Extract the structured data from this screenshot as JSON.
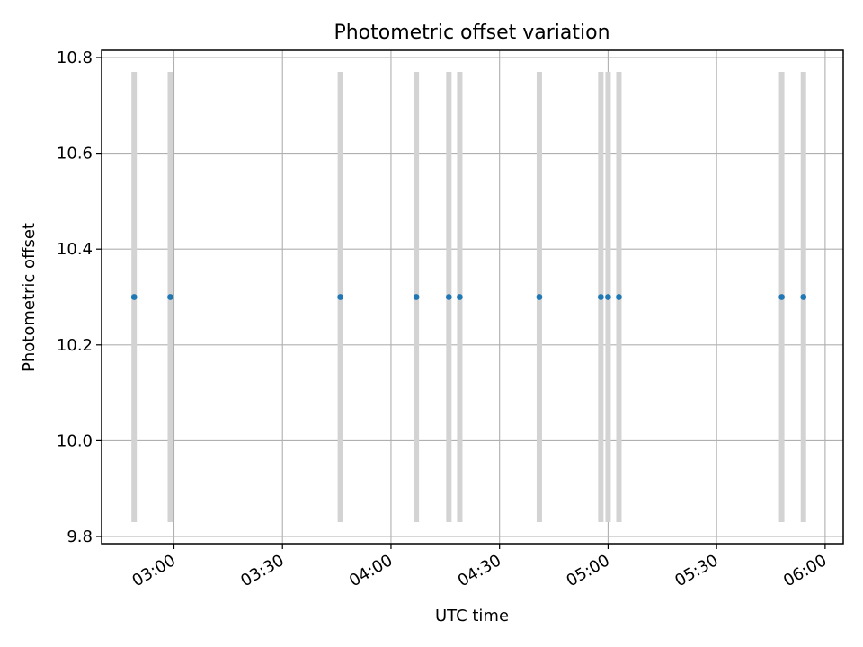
{
  "chart_data": {
    "type": "scatter",
    "title": "Photometric offset variation",
    "xlabel": "UTC time",
    "ylabel": "Photometric offset",
    "x_axis": {
      "range": [
        "02:40",
        "06:05"
      ],
      "ticks": [
        "03:00",
        "03:30",
        "04:00",
        "04:30",
        "05:00",
        "05:30",
        "06:00"
      ]
    },
    "y_axis": {
      "range": [
        9.785,
        10.815
      ],
      "ticks": [
        "9.8",
        "10.0",
        "10.2",
        "10.4",
        "10.6",
        "10.8"
      ]
    },
    "grid": true,
    "series": [
      {
        "color": "#1f77b4",
        "error_color": "#d3d3d3",
        "y_error_range": [
          9.83,
          10.77
        ],
        "points": [
          {
            "x": "02:49",
            "y": 10.3
          },
          {
            "x": "02:59",
            "y": 10.3
          },
          {
            "x": "03:46",
            "y": 10.3
          },
          {
            "x": "04:07",
            "y": 10.3
          },
          {
            "x": "04:16",
            "y": 10.3
          },
          {
            "x": "04:19",
            "y": 10.3
          },
          {
            "x": "04:41",
            "y": 10.3
          },
          {
            "x": "04:58",
            "y": 10.3
          },
          {
            "x": "05:00",
            "y": 10.3
          },
          {
            "x": "05:03",
            "y": 10.3
          },
          {
            "x": "05:48",
            "y": 10.3
          },
          {
            "x": "05:54",
            "y": 10.3
          }
        ]
      }
    ]
  }
}
